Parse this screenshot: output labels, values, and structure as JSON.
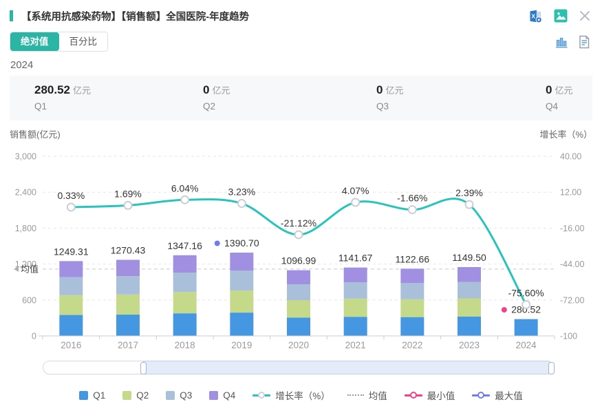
{
  "header": {
    "title": "【系统用抗感染药物】【销售额】全国医院-年度趋势",
    "icons": [
      "excel-export-icon",
      "image-export-icon",
      "close-icon"
    ]
  },
  "toolbar": {
    "absolute_label": "绝对值",
    "percent_label": "百分比",
    "icons": [
      "bar-chart-view-icon",
      "report-view-icon"
    ]
  },
  "period_label": "2024",
  "summary": {
    "items": [
      {
        "value": "280.52",
        "unit": "亿元",
        "label": "Q1"
      },
      {
        "value": "0",
        "unit": "亿元",
        "label": "Q2"
      },
      {
        "value": "0",
        "unit": "亿元",
        "label": "Q3"
      },
      {
        "value": "0",
        "unit": "亿元",
        "label": "Q4"
      }
    ]
  },
  "chart_data": {
    "type": "bar",
    "subtype": "stacked-bars-with-growth-line",
    "categories": [
      "2016",
      "2017",
      "2018",
      "2019",
      "2020",
      "2021",
      "2022",
      "2023",
      "2024"
    ],
    "series": [
      {
        "name": "Q1",
        "type": "bar",
        "color": "#4597e1",
        "values": [
          349.81,
          355.72,
          377.2,
          389.4,
          307.16,
          319.67,
          314.34,
          321.86,
          280.52
        ]
      },
      {
        "name": "Q2",
        "type": "bar",
        "color": "#c5d98b",
        "values": [
          331.07,
          336.66,
          357.0,
          368.54,
          290.7,
          302.54,
          297.5,
          304.62,
          0
        ]
      },
      {
        "name": "Q3",
        "type": "bar",
        "color": "#a9bfda",
        "values": [
          299.83,
          304.9,
          323.32,
          333.77,
          263.28,
          274.0,
          269.44,
          275.88,
          0
        ]
      },
      {
        "name": "Q4",
        "type": "bar",
        "color": "#a190e2",
        "values": [
          268.6,
          273.15,
          289.64,
          298.99,
          235.85,
          245.46,
          241.38,
          247.14,
          0
        ]
      },
      {
        "name": "增长率（%）",
        "type": "line",
        "color": "#26c4bc",
        "values": [
          0.33,
          1.69,
          6.04,
          3.23,
          -21.12,
          4.07,
          -1.66,
          2.39,
          -75.6
        ],
        "labels": [
          "0.33%",
          "1.69%",
          "6.04%",
          "3.23%",
          "-21.12%",
          "4.07%",
          "-1.66%",
          "2.39%",
          "-75.60%"
        ]
      }
    ],
    "totals": [
      1249.31,
      1270.43,
      1347.16,
      1390.7,
      1096.99,
      1141.67,
      1122.66,
      1149.5,
      280.52
    ],
    "total_labels": [
      "1249.31",
      "1270.43",
      "1347.16",
      "1390.70",
      "1096.99",
      "1141.67",
      "1122.66",
      "1149.50",
      "280.52"
    ],
    "mean": {
      "label": "均值",
      "value": 1116.55
    },
    "max_marker": {
      "category": "2019",
      "label": "1390.70",
      "color": "#6d7df0"
    },
    "min_marker": {
      "category": "2024",
      "label": "280.52",
      "color": "#f43f8a"
    },
    "left_axis": {
      "title": "销售额(亿元)",
      "min": 0,
      "max": 3000,
      "tick_labels": [
        "3,000",
        "2,400",
        "1,800",
        "1,200",
        "600",
        "0"
      ]
    },
    "right_axis": {
      "title": "增长率（%）",
      "min": -100,
      "max": 40,
      "tick_labels": [
        "40.00",
        "12.00",
        "-16.00",
        "-44.00",
        "-72.00",
        "-100"
      ]
    },
    "grid": true,
    "legend_position": "bottom"
  },
  "datazoom": {
    "start_pct": 19.6,
    "end_pct": 100
  },
  "legend": [
    {
      "kind": "swatch",
      "label": "Q1",
      "color": "#4597e1"
    },
    {
      "kind": "swatch",
      "label": "Q2",
      "color": "#c5d98b"
    },
    {
      "kind": "swatch",
      "label": "Q3",
      "color": "#a9bfda"
    },
    {
      "kind": "swatch",
      "label": "Q4",
      "color": "#a190e2"
    },
    {
      "kind": "line",
      "label": "增长率（%）",
      "color": "#26c4bc",
      "ring": "#cdd1d8"
    },
    {
      "kind": "dotted",
      "label": "均值",
      "color": "#9a9a9a"
    },
    {
      "kind": "line",
      "label": "最小值",
      "color": "#f43f8a",
      "ring": "#f43f8a"
    },
    {
      "kind": "line",
      "label": "最大值",
      "color": "#6d7df0",
      "ring": "#6d7df0"
    }
  ],
  "colors": {
    "accent": "#2ab5a5",
    "growth_line": "#26c4bc",
    "min": "#f43f8a",
    "max": "#6d7df0"
  }
}
